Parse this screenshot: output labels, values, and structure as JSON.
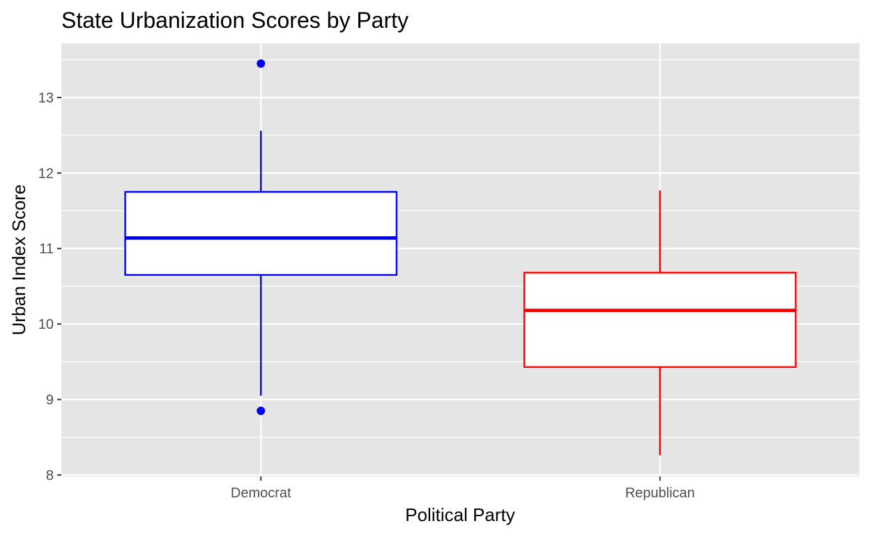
{
  "chart_data": {
    "type": "boxplot",
    "title": "State Urbanization Scores by Party",
    "xlabel": "Political Party",
    "ylabel": "Urban Index Score",
    "ylim": [
      7.98,
      13.72
    ],
    "yticks": [
      "8",
      "9",
      "10",
      "11",
      "12",
      "13"
    ],
    "grid": true,
    "legend": "none",
    "colors": {
      "panel": "#e5e5e5",
      "grid": "#ffffff",
      "tick": "#333333",
      "box_fill": "#ffffff"
    },
    "categories": [
      "Democrat",
      "Republican"
    ],
    "series": [
      {
        "category": "Democrat",
        "color": "#0000ff",
        "whisker_low": 9.05,
        "q1": 10.65,
        "median": 11.14,
        "q3": 11.75,
        "whisker_high": 12.56,
        "outliers": [
          13.45,
          8.85
        ]
      },
      {
        "category": "Republican",
        "color": "#ff0000",
        "whisker_low": 8.26,
        "q1": 9.43,
        "median": 10.18,
        "q3": 10.68,
        "whisker_high": 11.77,
        "outliers": []
      }
    ]
  }
}
